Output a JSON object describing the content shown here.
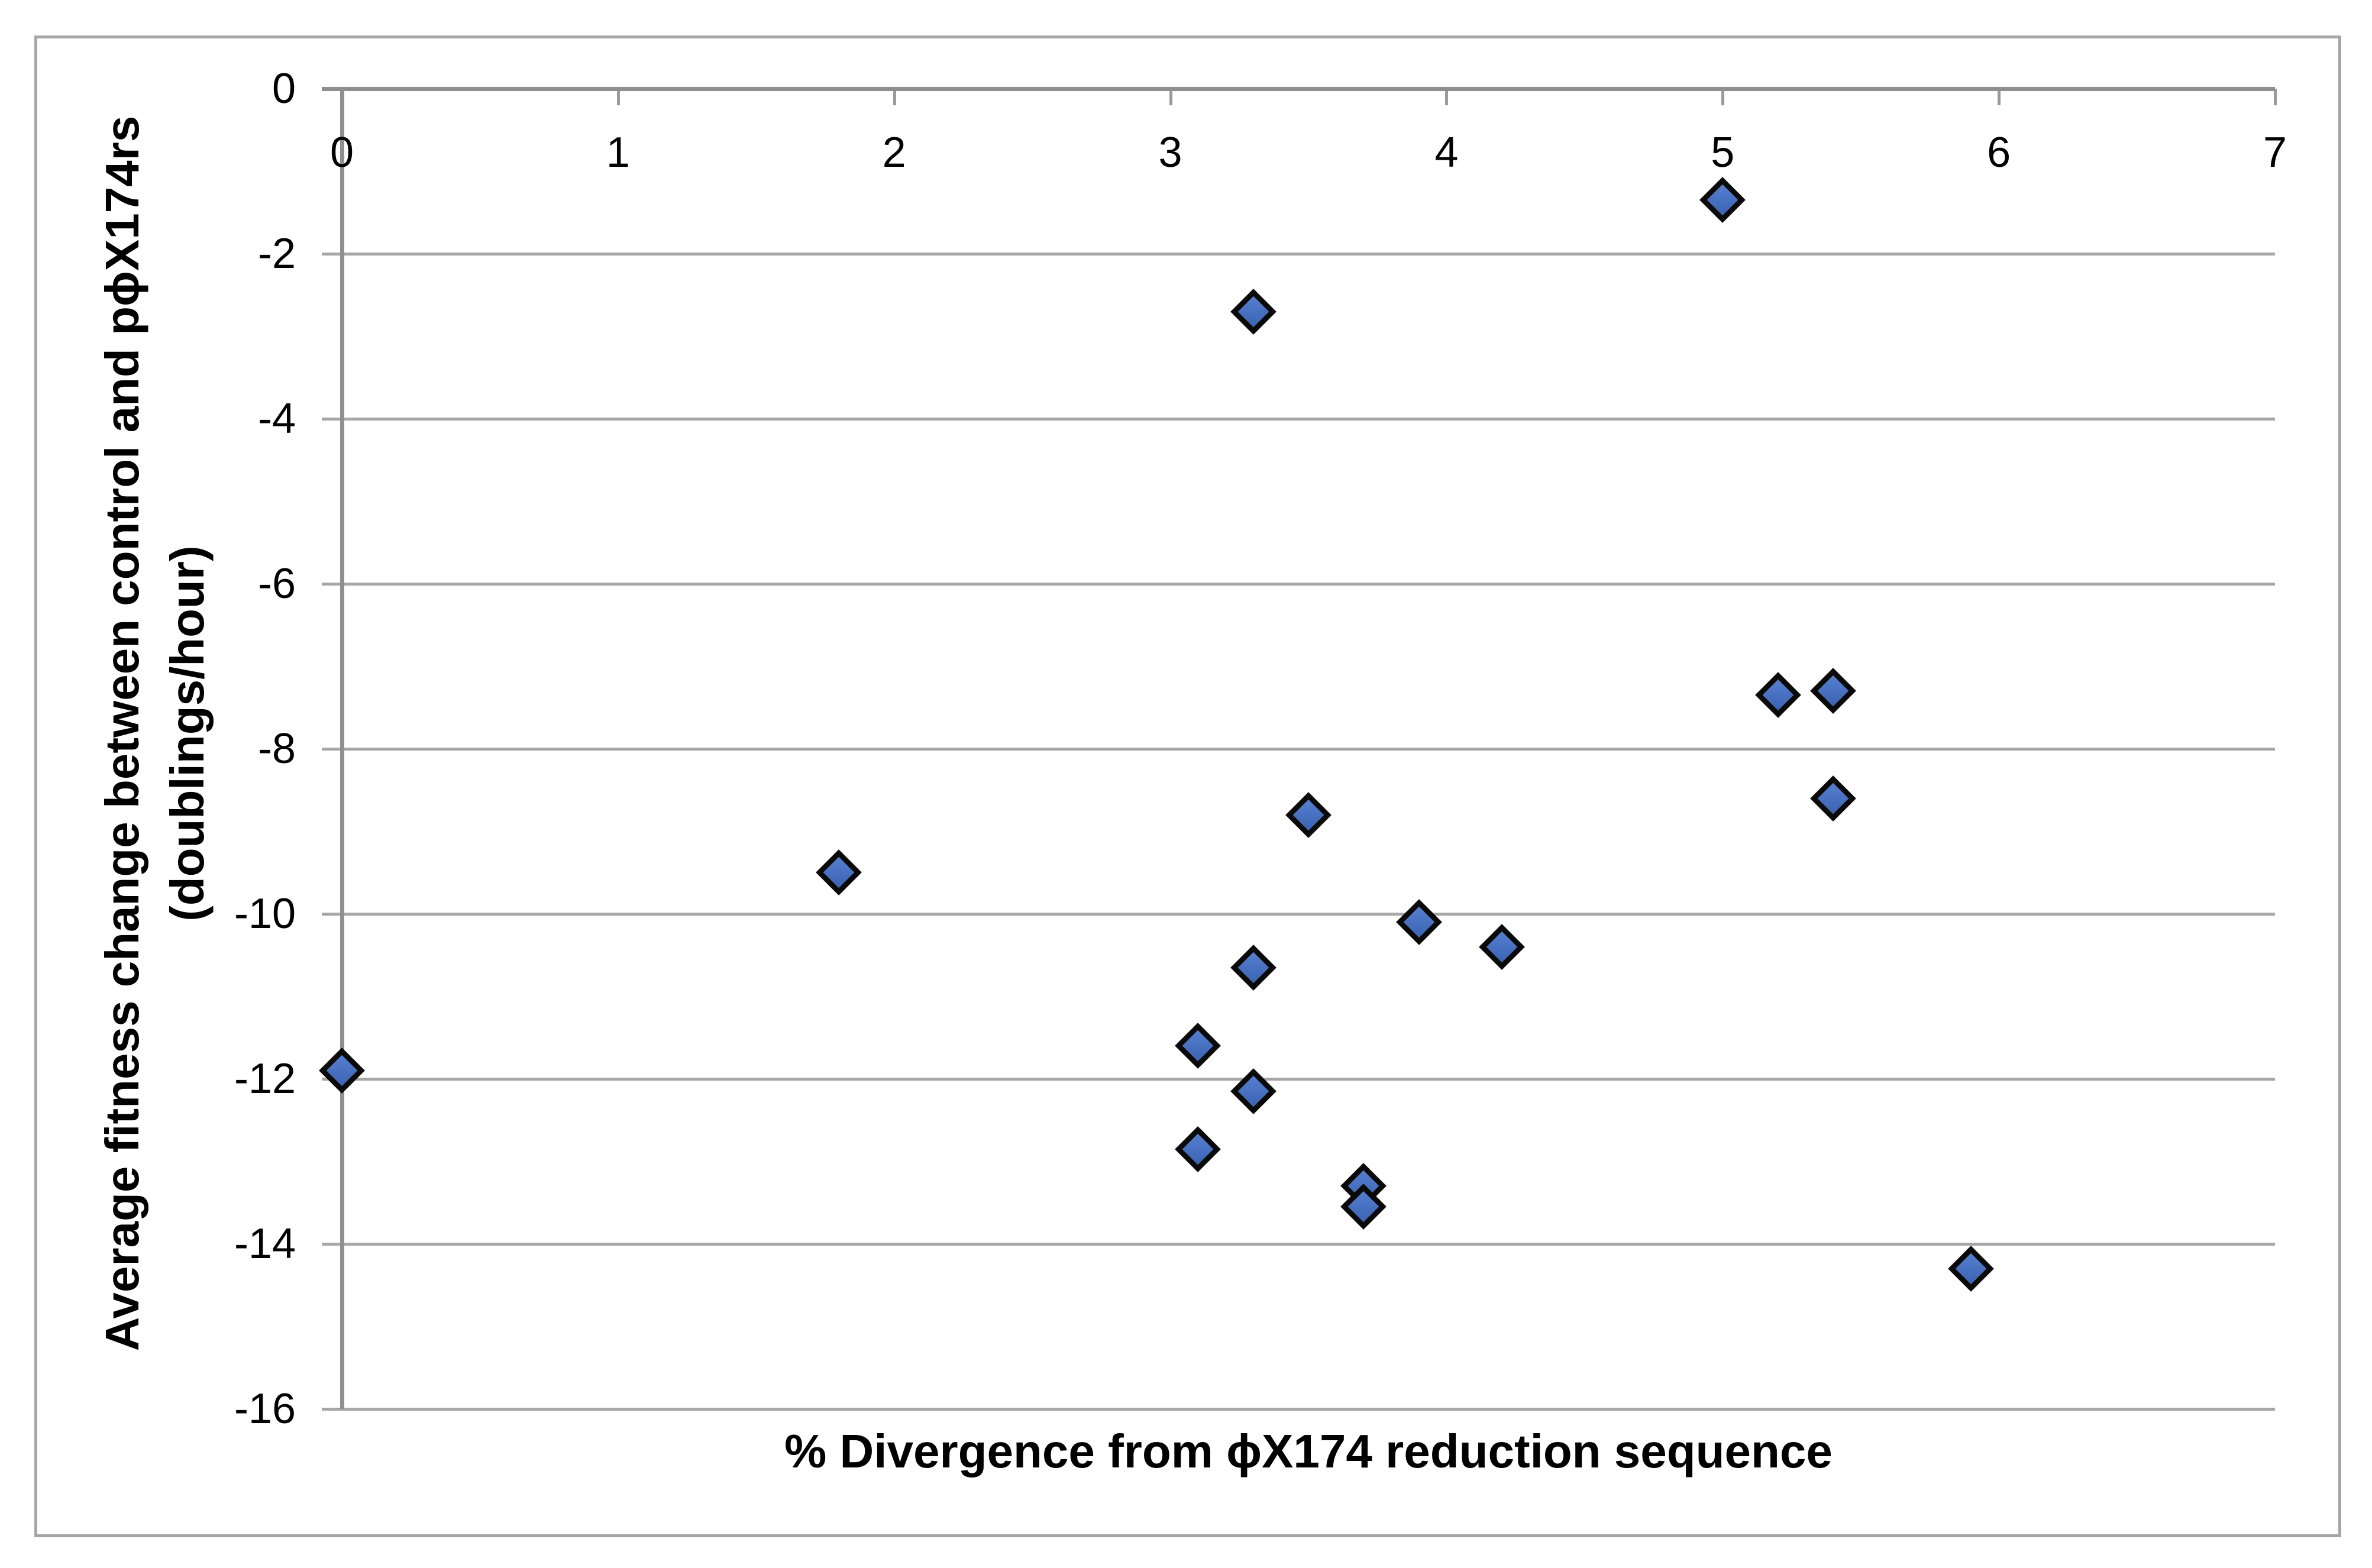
{
  "chart_data": {
    "type": "scatter",
    "xlabel": "% Divergence from ϕX174 reduction sequence",
    "ylabel_line1": "Average fitness change between control and pϕX174rs",
    "ylabel_line2": "(doublings/hour)",
    "xlim": [
      0,
      7
    ],
    "ylim": [
      -16,
      0
    ],
    "x_ticks": [
      0,
      1,
      2,
      3,
      4,
      5,
      6,
      7
    ],
    "y_ticks": [
      0,
      -2,
      -4,
      -6,
      -8,
      -10,
      -12,
      -14,
      -16
    ],
    "grid": true,
    "legend": false,
    "points": [
      {
        "x": 0.0,
        "y": -11.9
      },
      {
        "x": 1.8,
        "y": -9.5
      },
      {
        "x": 3.1,
        "y": -11.6
      },
      {
        "x": 3.1,
        "y": -12.85
      },
      {
        "x": 3.3,
        "y": -2.7
      },
      {
        "x": 3.3,
        "y": -10.65
      },
      {
        "x": 3.3,
        "y": -12.15
      },
      {
        "x": 3.5,
        "y": -8.8
      },
      {
        "x": 3.7,
        "y": -13.3
      },
      {
        "x": 3.7,
        "y": -13.55
      },
      {
        "x": 3.9,
        "y": -10.1
      },
      {
        "x": 4.2,
        "y": -10.4
      },
      {
        "x": 5.0,
        "y": -1.35
      },
      {
        "x": 5.2,
        "y": -7.35
      },
      {
        "x": 5.4,
        "y": -7.3
      },
      {
        "x": 5.4,
        "y": -8.6
      },
      {
        "x": 5.9,
        "y": -14.3
      }
    ],
    "marker": {
      "shape": "diamond",
      "fill_top": "#567fd0",
      "fill_bottom": "#3a63b2",
      "border": "#0a0a0a"
    },
    "colors": {
      "gridline": "#a6a6a6",
      "axis_line": "#8f8f8f",
      "text": "#000000",
      "figure_border": "#a6a6a6",
      "background": "#ffffff"
    }
  }
}
